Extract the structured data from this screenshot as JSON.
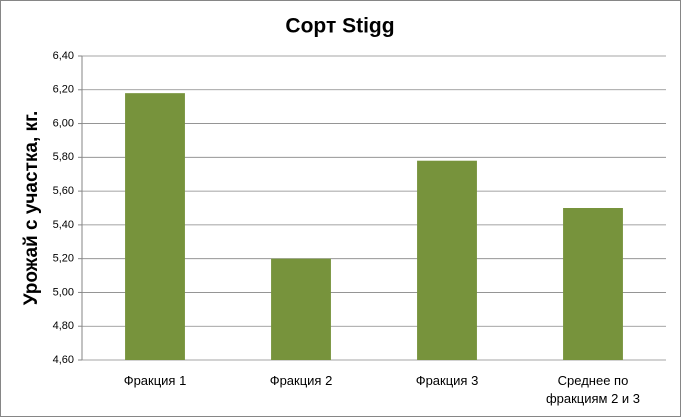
{
  "chart_data": {
    "type": "bar",
    "title": "Сорт Stigg",
    "y_label": "Урожай с участка, кг.",
    "categories": [
      "Фракция 1",
      "Фракция 2",
      "Фракция 3",
      "Среднее по фракциям 2 и 3"
    ],
    "values": [
      6.18,
      5.2,
      5.78,
      5.5
    ],
    "color": "#77933c",
    "ylim": [
      4.6,
      6.4
    ],
    "yticks": [
      {
        "value": 4.6,
        "label": "4,60"
      },
      {
        "value": 4.8,
        "label": "4,80"
      },
      {
        "value": 5.0,
        "label": "5,00"
      },
      {
        "value": 5.2,
        "label": "5,20"
      },
      {
        "value": 5.4,
        "label": "5,40"
      },
      {
        "value": 5.6,
        "label": "5,60"
      },
      {
        "value": 5.8,
        "label": "5,80"
      },
      {
        "value": 6.0,
        "label": "6,00"
      },
      {
        "value": 6.2,
        "label": "6,20"
      },
      {
        "value": 6.4,
        "label": "6,40"
      }
    ],
    "grid": true
  }
}
